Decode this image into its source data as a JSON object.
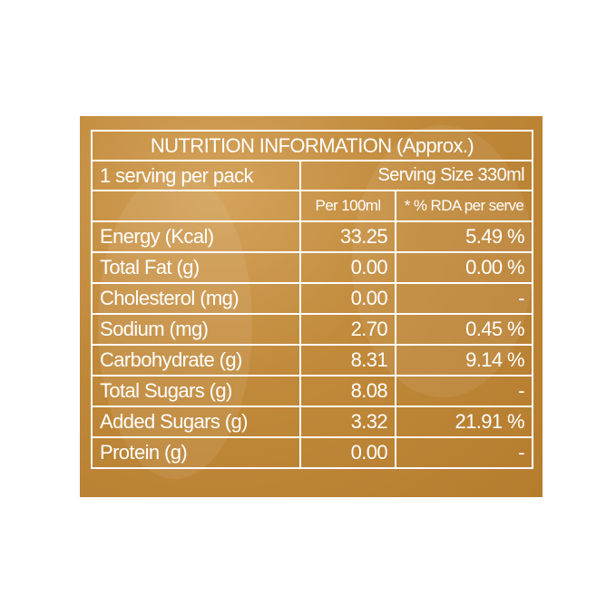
{
  "header": {
    "title": "NUTRITION INFORMATION (Approx.)",
    "serving_per_pack": "1 serving per pack",
    "serving_size": "Serving Size 330ml"
  },
  "table": {
    "columns": [
      "Per 100ml",
      "* % RDA per serve"
    ],
    "rows": [
      [
        "Energy (Kcal)",
        "33.25",
        "5.49 %"
      ],
      [
        "Total Fat (g)",
        "0.00",
        "0.00 %"
      ],
      [
        "Cholesterol (mg)",
        "0.00",
        "-"
      ],
      [
        "Sodium (mg)",
        "2.70",
        "0.45 %"
      ],
      [
        "Carbohydrate (g)",
        "8.31",
        "9.14 %"
      ],
      [
        "Total Sugars (g)",
        "8.08",
        "-"
      ],
      [
        "Added Sugars (g)",
        "3.32",
        "21.91 %"
      ],
      [
        "Protein (g)",
        "0.00",
        "-"
      ]
    ]
  }
}
